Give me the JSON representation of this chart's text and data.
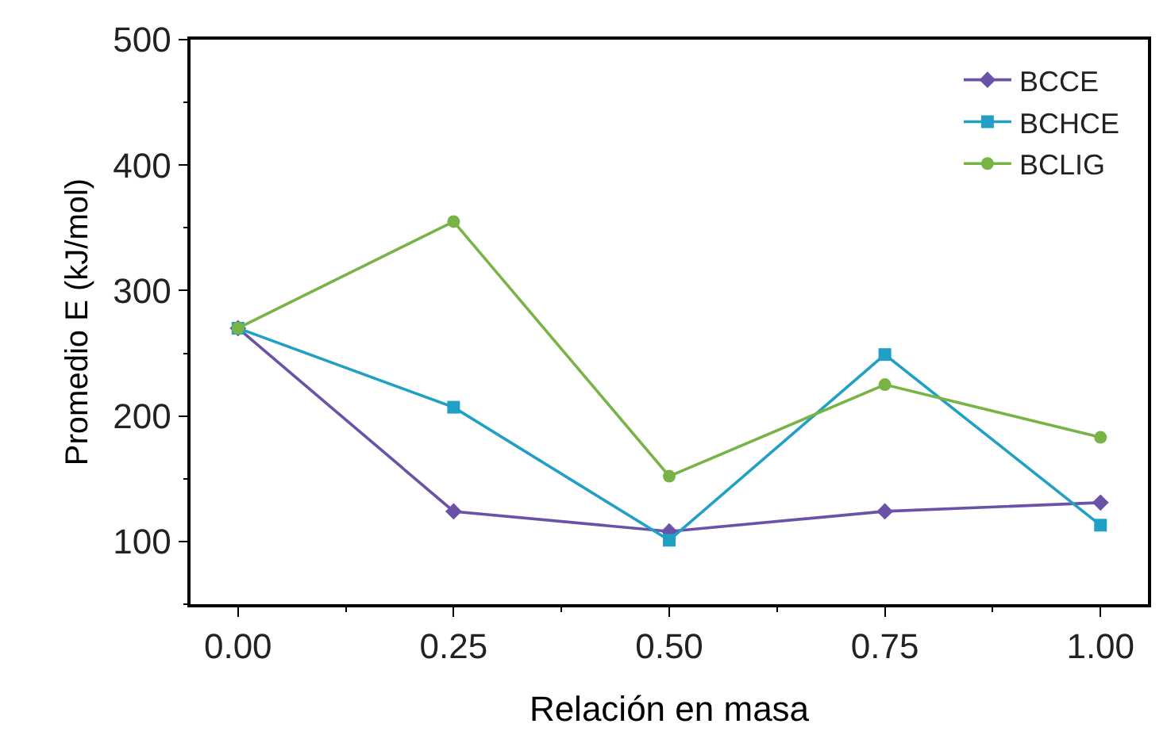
{
  "chart_data": {
    "type": "line",
    "xlabel": "Relación en masa",
    "ylabel": "Promedio E (kJ/mol)",
    "x": [
      0,
      0.25,
      0.5,
      0.75,
      1.0
    ],
    "series": [
      {
        "name": "BCCE",
        "color": "#6a52a8",
        "marker": "diamond",
        "values": [
          270,
          124,
          108,
          124,
          131
        ]
      },
      {
        "name": "BCHCE",
        "color": "#1fa0c4",
        "marker": "square",
        "values": [
          270,
          207,
          101,
          249,
          113
        ]
      },
      {
        "name": "BCLIG",
        "color": "#78b445",
        "marker": "circle",
        "values": [
          270,
          355,
          152,
          225,
          183
        ]
      }
    ],
    "xlim": [
      -0.055,
      1.055
    ],
    "ylim": [
      50,
      500
    ],
    "xticks": [
      {
        "value": 0,
        "label": "0.00"
      },
      {
        "value": 0.25,
        "label": "0.25"
      },
      {
        "value": 0.5,
        "label": "0.50"
      },
      {
        "value": 0.75,
        "label": "0.75"
      },
      {
        "value": 1.0,
        "label": "1.00"
      }
    ],
    "yticks": [
      100,
      200,
      300,
      400,
      500
    ],
    "legend": "top right",
    "line_style": "solid"
  }
}
